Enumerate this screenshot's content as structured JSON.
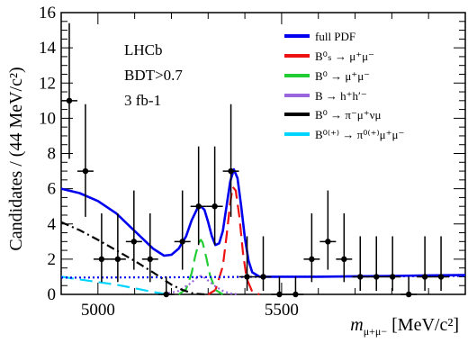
{
  "chart_data": {
    "type": "scatter",
    "xlabel": "m",
    "xlabel_sub": "μ+μ−",
    "xlabel_unit": "[MeV/c²]",
    "ylabel": "Candidates / (44 MeV/c²)",
    "xlim": [
      4900,
      6000
    ],
    "ylim": [
      0,
      16
    ],
    "x_ticks": [
      5000,
      5500
    ],
    "y_ticks": [
      0,
      2,
      4,
      6,
      8,
      10,
      12,
      14,
      16
    ],
    "grid": false,
    "legend_position": "top-right",
    "annotations": [
      "LHCb",
      "BDT>0.7",
      "3 fb-1"
    ],
    "legend": [
      {
        "label": "full PDF",
        "color": "#0000ee"
      },
      {
        "label": "B⁰ₛ → μ⁺μ⁻",
        "color": "#ee1111"
      },
      {
        "label": "B⁰ → μ⁺μ⁻",
        "color": "#22cc33"
      },
      {
        "label": "B → h⁺h′⁻",
        "color": "#9966dd"
      },
      {
        "label": "B⁰ → π⁻μ⁺νμ",
        "color": "#000000"
      },
      {
        "label": "B⁰⁽⁺⁾ → π⁰⁽⁺⁾μ⁺μ⁻",
        "color": "#00d5ff"
      }
    ],
    "data_points": [
      {
        "x": 4922,
        "y": 11,
        "yerr_lo": 3.3,
        "yerr_hi": 4.4
      },
      {
        "x": 4966,
        "y": 7,
        "yerr_lo": 2.6,
        "yerr_hi": 3.8
      },
      {
        "x": 5010,
        "y": 2,
        "yerr_lo": 1.3,
        "yerr_hi": 2.6
      },
      {
        "x": 5054,
        "y": 2,
        "yerr_lo": 1.3,
        "yerr_hi": 2.6
      },
      {
        "x": 5098,
        "y": 3,
        "yerr_lo": 1.6,
        "yerr_hi": 2.9
      },
      {
        "x": 5142,
        "y": 2,
        "yerr_lo": 1.3,
        "yerr_hi": 2.6
      },
      {
        "x": 5186,
        "y": 0,
        "yerr_lo": 0,
        "yerr_hi": 1.0
      },
      {
        "x": 5230,
        "y": 3,
        "yerr_lo": 1.6,
        "yerr_hi": 2.9
      },
      {
        "x": 5274,
        "y": 5,
        "yerr_lo": 2.2,
        "yerr_hi": 3.4
      },
      {
        "x": 5318,
        "y": 5,
        "yerr_lo": 2.2,
        "yerr_hi": 3.4
      },
      {
        "x": 5362,
        "y": 7,
        "yerr_lo": 2.6,
        "yerr_hi": 3.8
      },
      {
        "x": 5406,
        "y": 1,
        "yerr_lo": 0.8,
        "yerr_hi": 2.3
      },
      {
        "x": 5450,
        "y": 1,
        "yerr_lo": 0.8,
        "yerr_hi": 2.3
      },
      {
        "x": 5494,
        "y": 0,
        "yerr_lo": 0,
        "yerr_hi": 1.0
      },
      {
        "x": 5538,
        "y": 0,
        "yerr_lo": 0,
        "yerr_hi": 1.0
      },
      {
        "x": 5582,
        "y": 2,
        "yerr_lo": 1.3,
        "yerr_hi": 2.6
      },
      {
        "x": 5626,
        "y": 3,
        "yerr_lo": 1.6,
        "yerr_hi": 2.9
      },
      {
        "x": 5670,
        "y": 2,
        "yerr_lo": 1.3,
        "yerr_hi": 2.6
      },
      {
        "x": 5714,
        "y": 1,
        "yerr_lo": 0.8,
        "yerr_hi": 2.3
      },
      {
        "x": 5758,
        "y": 1,
        "yerr_lo": 0.8,
        "yerr_hi": 2.3
      },
      {
        "x": 5802,
        "y": 1,
        "yerr_lo": 0.8,
        "yerr_hi": 2.3
      },
      {
        "x": 5846,
        "y": 0,
        "yerr_lo": 0,
        "yerr_hi": 1.0
      },
      {
        "x": 5890,
        "y": 1,
        "yerr_lo": 0.8,
        "yerr_hi": 2.3
      },
      {
        "x": 5934,
        "y": 1,
        "yerr_lo": 0.8,
        "yerr_hi": 2.3
      }
    ],
    "curves": [
      {
        "name": "full PDF",
        "color": "#0000ee",
        "style": "solid",
        "x": [
          4900,
          4950,
          5000,
          5050,
          5100,
          5150,
          5180,
          5200,
          5220,
          5240,
          5255,
          5270,
          5280,
          5290,
          5300,
          5310,
          5320,
          5330,
          5340,
          5350,
          5360,
          5370,
          5380,
          5390,
          5400,
          5410,
          5420,
          5440,
          5500,
          5600,
          5700,
          5800,
          5900,
          6000
        ],
        "y": [
          6.0,
          5.75,
          5.3,
          4.6,
          3.6,
          2.6,
          2.2,
          2.25,
          2.6,
          3.3,
          4.2,
          4.85,
          5.0,
          4.8,
          4.1,
          3.3,
          2.8,
          2.9,
          3.6,
          5.0,
          6.4,
          7.1,
          6.6,
          5.0,
          3.2,
          1.9,
          1.25,
          1.0,
          1.0,
          1.0,
          1.03,
          1.05,
          1.08,
          1.1
        ]
      },
      {
        "name": "Bs0 → μ+μ−",
        "color": "#ee1111",
        "style": "dashed",
        "x": [
          5300,
          5320,
          5340,
          5350,
          5360,
          5367,
          5375,
          5385,
          5395,
          5405,
          5420,
          5440
        ],
        "y": [
          0,
          0.25,
          1.6,
          3.3,
          5.2,
          6.1,
          5.9,
          4.4,
          2.3,
          0.9,
          0.15,
          0
        ]
      },
      {
        "name": "B0 → μ+μ−",
        "color": "#22cc33",
        "style": "dashed",
        "x": [
          5220,
          5240,
          5255,
          5265,
          5275,
          5280,
          5285,
          5295,
          5305,
          5320,
          5340
        ],
        "y": [
          0,
          0.3,
          1.2,
          2.2,
          2.95,
          3.1,
          2.95,
          2.1,
          1.1,
          0.25,
          0
        ]
      },
      {
        "name": "B → h+h′−",
        "color": "#9966dd",
        "style": "dotted",
        "x": [
          5180,
          5220,
          5250,
          5270,
          5280,
          5290,
          5305,
          5320,
          5340,
          5360,
          5380
        ],
        "y": [
          0,
          0.2,
          0.6,
          0.95,
          1.05,
          0.95,
          0.7,
          0.45,
          0.2,
          0.05,
          0
        ]
      },
      {
        "name": "B0 → π−μ+νμ",
        "color": "#000000",
        "style": "dashdot",
        "x": [
          4900,
          4950,
          5000,
          5050,
          5100,
          5150,
          5200,
          5230,
          5260,
          5290
        ],
        "y": [
          4.1,
          3.65,
          3.1,
          2.5,
          1.9,
          1.25,
          0.55,
          0.25,
          0.05,
          0
        ]
      },
      {
        "name": "B0(+) → π0(+)μ+μ−",
        "color": "#00d5ff",
        "style": "dashed",
        "x": [
          4900,
          4950,
          5000,
          5050,
          5100,
          5130,
          5160,
          5190
        ],
        "y": [
          1.0,
          0.85,
          0.7,
          0.55,
          0.35,
          0.22,
          0.1,
          0
        ]
      },
      {
        "name": "combinatorial",
        "color": "#0000ee",
        "style": "dotted",
        "x": [
          4900,
          5200,
          5500,
          5800,
          6000
        ],
        "y": [
          0.95,
          0.97,
          1.0,
          1.03,
          1.05
        ]
      }
    ]
  }
}
